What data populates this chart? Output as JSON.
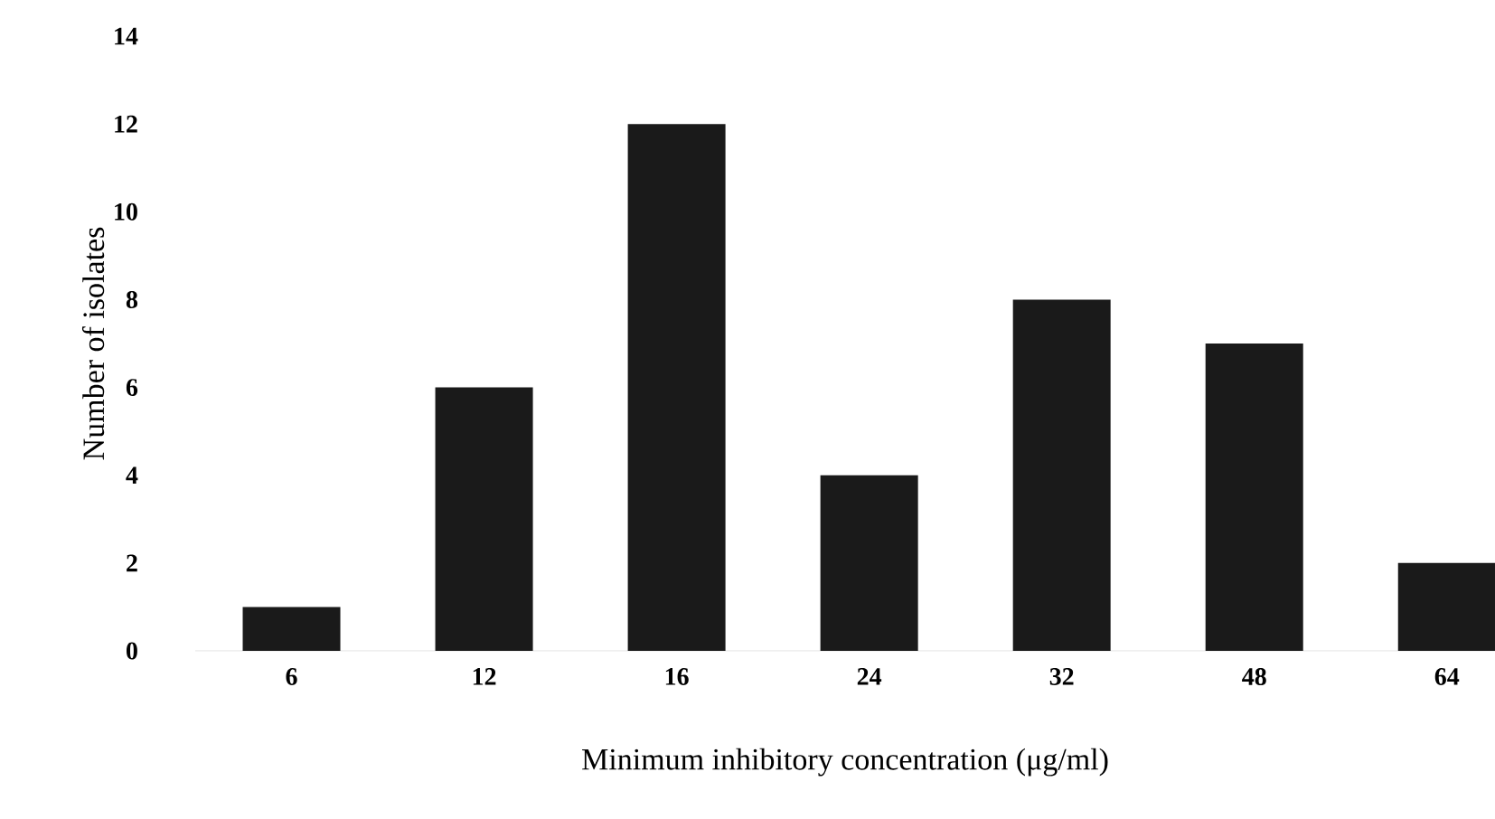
{
  "chart_data": {
    "type": "bar",
    "xlabel": "Minimum inhibitory concentration (μg/ml)",
    "ylabel": "Number of isolates",
    "categories": [
      "6",
      "12",
      "16",
      "24",
      "32",
      "48",
      "64"
    ],
    "values": [
      1,
      6,
      12,
      4,
      8,
      7,
      2
    ],
    "color": "#1a1a1a",
    "ylim": [
      0,
      14
    ],
    "yticks": [
      0,
      2,
      4,
      6,
      8,
      10,
      12,
      14
    ]
  }
}
